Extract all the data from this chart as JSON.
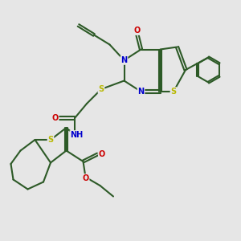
{
  "bg_color": "#e6e6e6",
  "bond_color": "#2d5a27",
  "S_color": "#b8b800",
  "N_color": "#0000cc",
  "O_color": "#cc0000",
  "line_width": 1.5,
  "dbo": 0.06,
  "xlim": [
    0,
    10
  ],
  "ylim": [
    0,
    10
  ]
}
